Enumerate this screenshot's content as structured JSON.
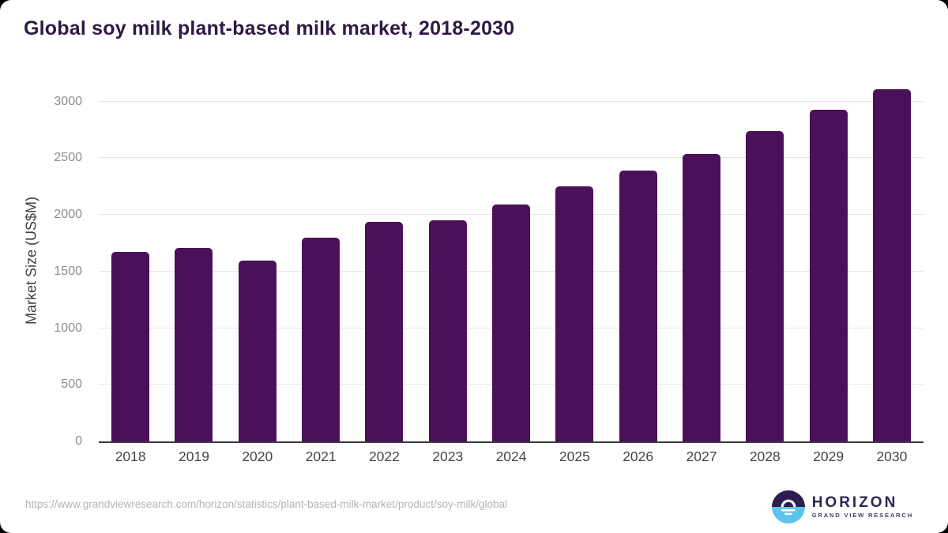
{
  "title": "Global soy milk plant-based milk market, 2018-2030",
  "chart_data": {
    "type": "bar",
    "title": "Global soy milk plant-based milk market, 2018-2030",
    "categories": [
      "2018",
      "2019",
      "2020",
      "2021",
      "2022",
      "2023",
      "2024",
      "2025",
      "2026",
      "2027",
      "2028",
      "2029",
      "2030"
    ],
    "values": [
      1670,
      1710,
      1600,
      1800,
      1940,
      1955,
      2090,
      2255,
      2390,
      2540,
      2740,
      2930,
      3110
    ],
    "xlabel": "",
    "ylabel": "Market Size (US$M)",
    "ylim": [
      0,
      3200
    ],
    "yticks": [
      0,
      500,
      1000,
      1500,
      2000,
      2500,
      3000
    ],
    "legend": "none",
    "grid": "horizontal"
  },
  "colors": {
    "bar": "#4a1158",
    "title": "#2d1a45",
    "axis_line": "#3c3c3c",
    "gridline": "#e6e4e9",
    "y_tick_label": "#8e8c90",
    "x_tick_label": "#474449",
    "y_axis_title": "#3f3d43",
    "url_text": "#b5b4b6",
    "logo_circle_top": "#2d1c4d",
    "logo_circle_bottom": "#5ec4ec",
    "logo_brand_text": "#2e2457",
    "logo_tagline_text": "#47356f"
  },
  "footer": {
    "source_url": "https://www.grandviewresearch.com/horizon/statistics/plant-based-milk-market/product/soy-milk/global",
    "logo": {
      "brand": "HORIZON",
      "tagline": "GRAND VIEW RESEARCH"
    }
  }
}
